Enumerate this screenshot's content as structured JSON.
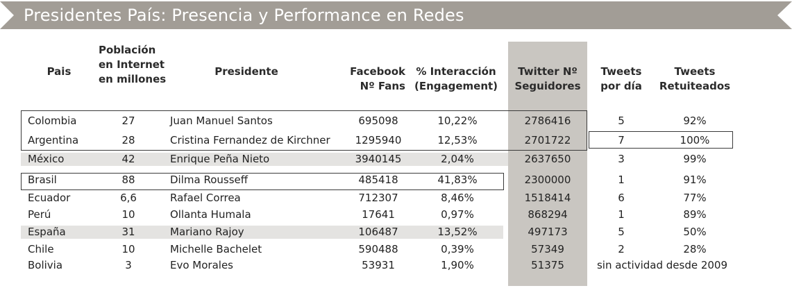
{
  "banner": {
    "title": "Presidentes País: Presencia y Performance en Redes",
    "color": "#a29d96"
  },
  "headers": {
    "pais": "Pais",
    "poblacion_1": "Población",
    "poblacion_2": "en Internet",
    "poblacion_3": "en millones",
    "presidente": "Presidente",
    "facebook_1": "Facebook",
    "facebook_2": "Nº Fans",
    "interaccion_1": "% Interacción",
    "interaccion_2": "(Engagement)",
    "twitter_1": "Twitter Nº",
    "twitter_2": "Seguidores",
    "tweets_dia_1": "Tweets",
    "tweets_dia_2": "por día",
    "retuiteados_1": "Tweets",
    "retuiteados_2": "Retuiteados"
  },
  "rows": [
    {
      "pais": "Colombia",
      "poblacion": "27",
      "presidente": "Juan Manuel Santos",
      "facebook": "695098",
      "interaccion": "10,22%",
      "twitter": "2786416",
      "tweets_dia": "5",
      "retuiteados": "92%"
    },
    {
      "pais": "Argentina",
      "poblacion": "28",
      "presidente": "Cristina Fernandez de Kirchner",
      "facebook": "1295940",
      "interaccion": "12,53%",
      "twitter": "2701722",
      "tweets_dia": "7",
      "retuiteados": "100%"
    },
    {
      "pais": "México",
      "poblacion": "42",
      "presidente": "Enrique Peña Nieto",
      "facebook": "3940145",
      "interaccion": "2,04%",
      "twitter": "2637650",
      "tweets_dia": "3",
      "retuiteados": "99%"
    },
    {
      "pais": "Brasil",
      "poblacion": "88",
      "presidente": "Dilma Rousseff",
      "facebook": "485418",
      "interaccion": "41,83%",
      "twitter": "2300000",
      "tweets_dia": "1",
      "retuiteados": "91%"
    },
    {
      "pais": "Ecuador",
      "poblacion": "6,6",
      "presidente": "Rafael Correa",
      "facebook": "712307",
      "interaccion": "8,46%",
      "twitter": "1518414",
      "tweets_dia": "6",
      "retuiteados": "77%"
    },
    {
      "pais": "Perú",
      "poblacion": "10",
      "presidente": "Ollanta Humala",
      "facebook": "17641",
      "interaccion": "0,97%",
      "twitter": "868294",
      "tweets_dia": "1",
      "retuiteados": "89%"
    },
    {
      "pais": "España",
      "poblacion": "31",
      "presidente": "Mariano Rajoy",
      "facebook": "106487",
      "interaccion": "13,52%",
      "twitter": "497173",
      "tweets_dia": "5",
      "retuiteados": "50%"
    },
    {
      "pais": "Chile",
      "poblacion": "10",
      "presidente": "Michelle Bachelet",
      "facebook": "590488",
      "interaccion": "0,39%",
      "twitter": "57349",
      "tweets_dia": "2",
      "retuiteados": "28%"
    },
    {
      "pais": "Bolivia",
      "poblacion": "3",
      "presidente": "Evo Morales",
      "facebook": "53931",
      "interaccion": "1,90%",
      "twitter": "51375",
      "tweets_dia": "",
      "retuiteados": ""
    }
  ],
  "bolivia_tweets_note": "sin actividad desde 2009",
  "chart_data": {
    "type": "table",
    "title": "Presidentes País: Presencia y Performance en Redes",
    "columns": [
      "Pais",
      "Población en Internet en millones",
      "Presidente",
      "Facebook Nº Fans",
      "% Interacción (Engagement)",
      "Twitter Nº Seguidores",
      "Tweets por día",
      "Tweets Retuiteados"
    ],
    "rows": [
      [
        "Colombia",
        27,
        "Juan Manuel Santos",
        695098,
        "10,22%",
        2786416,
        5,
        "92%"
      ],
      [
        "Argentina",
        28,
        "Cristina Fernandez de Kirchner",
        1295940,
        "12,53%",
        2701722,
        7,
        "100%"
      ],
      [
        "México",
        42,
        "Enrique Peña Nieto",
        3940145,
        "2,04%",
        2637650,
        3,
        "99%"
      ],
      [
        "Brasil",
        88,
        "Dilma Rousseff",
        485418,
        "41,83%",
        2300000,
        1,
        "91%"
      ],
      [
        "Ecuador",
        6.6,
        "Rafael Correa",
        712307,
        "8,46%",
        1518414,
        6,
        "77%"
      ],
      [
        "Perú",
        10,
        "Ollanta Humala",
        17641,
        "0,97%",
        868294,
        1,
        "89%"
      ],
      [
        "España",
        31,
        "Mariano Rajoy",
        106487,
        "13,52%",
        497173,
        5,
        "50%"
      ],
      [
        "Chile",
        10,
        "Michelle Bachelet",
        590488,
        "0,39%",
        57349,
        2,
        "28%"
      ],
      [
        "Bolivia",
        3,
        "Evo Morales",
        53931,
        "1,90%",
        51375,
        "sin actividad desde 2009",
        "sin actividad desde 2009"
      ]
    ],
    "highlighted_column": "Twitter Nº Seguidores",
    "shaded_rows": [
      "México",
      "España"
    ],
    "boxed_cells": [
      "Colombia–Argentina (Pais to Twitter)",
      "Brasil (Pais to Interacción)",
      "Argentina (Tweets por día to Retuiteados)"
    ]
  }
}
